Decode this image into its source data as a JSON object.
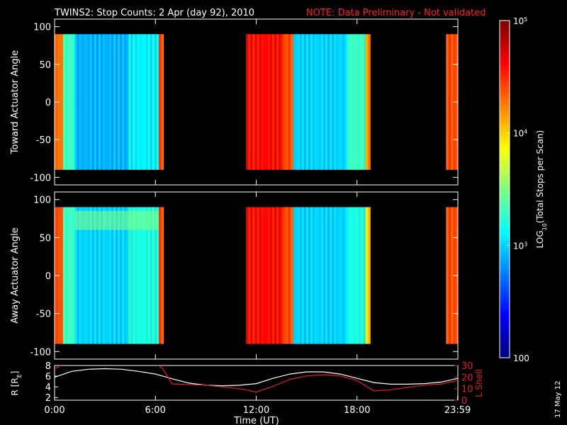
{
  "header": {
    "title": "TWINS2: Stop Counts:  2 Apr (day  92), 2010",
    "note": "NOTE: Data Preliminary - Not validated"
  },
  "footer": {
    "side_date": "17 May 12"
  },
  "colors": {
    "note": "#ff2020",
    "r_line": "#ffffff",
    "lshell_line": "#e02020"
  },
  "chart_data": [
    {
      "type": "heatmap",
      "name": "toward",
      "ylabel": "Toward Actuator Angle",
      "ylim": [
        -110,
        110
      ],
      "yticks": [
        100,
        50,
        0,
        -50,
        -100
      ],
      "xlim": [
        0,
        24
      ],
      "angle_range": [
        -90,
        90
      ],
      "data_intervals_hours": [
        [
          0,
          6.5
        ],
        [
          11.4,
          18.8
        ],
        [
          23.3,
          24
        ]
      ],
      "typical_log10_counts_by_segment": [
        {
          "from": 0.0,
          "to": 0.5,
          "value": 4.3
        },
        {
          "from": 0.5,
          "to": 1.2,
          "value": 3.3
        },
        {
          "from": 1.2,
          "to": 4.4,
          "value": 2.9
        },
        {
          "from": 4.4,
          "to": 6.2,
          "value": 3.1
        },
        {
          "from": 6.2,
          "to": 6.5,
          "value": 4.4
        },
        {
          "from": 11.4,
          "to": 13.6,
          "value": 4.6
        },
        {
          "from": 13.6,
          "to": 14.2,
          "value": 4.4
        },
        {
          "from": 14.2,
          "to": 17.4,
          "value": 3.0
        },
        {
          "from": 17.4,
          "to": 18.5,
          "value": 3.3
        },
        {
          "from": 18.5,
          "to": 18.8,
          "value": 4.2
        },
        {
          "from": 23.3,
          "to": 24.0,
          "value": 4.4
        }
      ]
    },
    {
      "type": "heatmap",
      "name": "away",
      "ylabel": "Away Actuator Angle",
      "ylim": [
        -110,
        110
      ],
      "yticks": [
        100,
        50,
        0,
        -50,
        -100
      ],
      "xlim": [
        0,
        24
      ],
      "angle_range": [
        -90,
        90
      ],
      "data_intervals_hours": [
        [
          0,
          6.5
        ],
        [
          11.4,
          18.8
        ],
        [
          23.3,
          24
        ]
      ],
      "typical_log10_counts_by_segment": [
        {
          "from": 0.0,
          "to": 0.5,
          "value": 4.4
        },
        {
          "from": 0.5,
          "to": 1.2,
          "value": 3.3
        },
        {
          "from": 1.2,
          "to": 4.4,
          "value": 3.0
        },
        {
          "from": 4.4,
          "to": 6.2,
          "value": 3.2
        },
        {
          "from": 6.2,
          "to": 6.5,
          "value": 4.4
        },
        {
          "from": 11.4,
          "to": 13.6,
          "value": 4.6
        },
        {
          "from": 13.6,
          "to": 14.2,
          "value": 4.4
        },
        {
          "from": 14.2,
          "to": 17.4,
          "value": 3.0
        },
        {
          "from": 17.4,
          "to": 18.5,
          "value": 3.2
        },
        {
          "from": 18.5,
          "to": 18.8,
          "value": 4.0
        },
        {
          "from": 23.3,
          "to": 24.0,
          "value": 4.4
        }
      ],
      "enhanced_high_angle_band": {
        "angle_from": 60,
        "angle_to": 85,
        "hour_from": 1.2,
        "hour_to": 6.2,
        "value": 3.5
      }
    },
    {
      "type": "line",
      "name": "orbit",
      "ylabel_left": "R [R",
      "ylabel_left_sub": "E",
      "ylabel_left_close": "]",
      "ylabel_right": "L Shell",
      "ylim_left": [
        1.5,
        8
      ],
      "yticks_left": [
        2,
        4,
        6,
        8
      ],
      "ylim_right": [
        0,
        30
      ],
      "yticks_right": [
        0,
        10,
        20,
        30
      ],
      "xlim": [
        0,
        24
      ],
      "xticks": [
        0,
        6,
        12,
        18,
        23.983
      ],
      "xtick_labels": [
        "0:00",
        "6:00",
        "12:00",
        "18:00",
        "23:59"
      ],
      "xlabel": "Time (UT)",
      "series": [
        {
          "axis": "left",
          "x": [
            0,
            1,
            2,
            3,
            4,
            5,
            6,
            7,
            8,
            9,
            10,
            11,
            12,
            13,
            14,
            15,
            16,
            17,
            18,
            19,
            20,
            21,
            22,
            23,
            24
          ],
          "y": [
            5.8,
            6.9,
            7.3,
            7.4,
            7.3,
            6.9,
            6.4,
            5.5,
            4.7,
            4.3,
            4.2,
            4.3,
            4.6,
            5.6,
            6.4,
            6.8,
            6.8,
            6.4,
            5.6,
            4.8,
            4.5,
            4.5,
            4.6,
            4.9,
            5.6
          ]
        },
        {
          "axis": "right",
          "x": [
            0,
            0.6,
            6.0,
            6.4,
            7.0,
            9.0,
            11.0,
            12.0,
            13.0,
            14.0,
            15.0,
            16.0,
            17.0,
            18.0,
            19.0,
            20.0,
            21.0,
            22.0,
            23.0,
            24.0
          ],
          "y": [
            27,
            32,
            32,
            28,
            14,
            13,
            10,
            7,
            12,
            18,
            21,
            22,
            21,
            17,
            8,
            9,
            11,
            13,
            14,
            17
          ]
        }
      ]
    },
    {
      "type": "colorbar",
      "ylabel": "LOG",
      "ylabel_sub": "10",
      "ylabel_rest": "(Total Stops per Scan)",
      "range_log10": [
        2,
        5
      ],
      "tick_values_log10": [
        2,
        3,
        4,
        5
      ],
      "tick_labels": [
        {
          "base": "100",
          "exp": ""
        },
        {
          "base": "10",
          "exp": "3"
        },
        {
          "base": "10",
          "exp": "4"
        },
        {
          "base": "10",
          "exp": "5"
        }
      ]
    }
  ]
}
